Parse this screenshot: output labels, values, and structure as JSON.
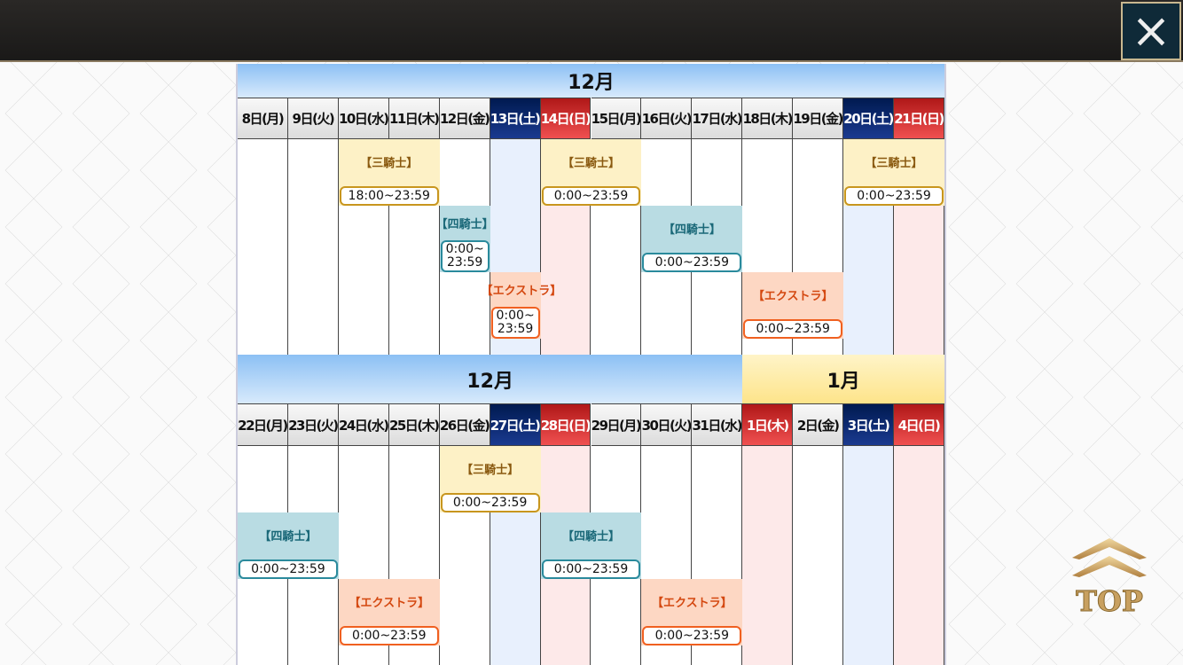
{
  "header": {
    "close_icon": "close-icon",
    "close_label": "×"
  },
  "colors": {
    "saturday": "#1a3a90",
    "sunday_holiday": "#d03030",
    "sankishi": "#c8961e",
    "yonkishi": "#2a8a9c",
    "extra": "#f06020"
  },
  "weeks": [
    {
      "months": [
        {
          "label": "12月",
          "start": 0,
          "span": 14,
          "style": "blue"
        }
      ],
      "days": [
        {
          "label": "8日(月)",
          "type": "norm"
        },
        {
          "label": "9日(火)",
          "type": "norm"
        },
        {
          "label": "10日(水)",
          "type": "norm"
        },
        {
          "label": "11日(木)",
          "type": "norm"
        },
        {
          "label": "12日(金)",
          "type": "norm"
        },
        {
          "label": "13日(土)",
          "type": "sat"
        },
        {
          "label": "14日(日)",
          "type": "sun"
        },
        {
          "label": "15日(月)",
          "type": "norm"
        },
        {
          "label": "16日(火)",
          "type": "norm"
        },
        {
          "label": "17日(水)",
          "type": "norm"
        },
        {
          "label": "18日(木)",
          "type": "norm"
        },
        {
          "label": "19日(金)",
          "type": "norm"
        },
        {
          "label": "20日(土)",
          "type": "sat"
        },
        {
          "label": "21日(日)",
          "type": "sun"
        }
      ],
      "events": [
        {
          "type": "san",
          "label": "【三騎士】",
          "time": "18:00~23:59",
          "start": 2,
          "span": 2
        },
        {
          "type": "san",
          "label": "【三騎士】",
          "time": "0:00~23:59",
          "start": 6,
          "span": 2
        },
        {
          "type": "san",
          "label": "【三騎士】",
          "time": "0:00~23:59",
          "start": 12,
          "span": 2
        },
        {
          "type": "yon",
          "label": "【四騎士】",
          "time": "0:00~ 23:59",
          "start": 4,
          "span": 1
        },
        {
          "type": "yon",
          "label": "【四騎士】",
          "time": "0:00~23:59",
          "start": 8,
          "span": 2
        },
        {
          "type": "ext",
          "label": "【エクストラ】",
          "time": "0:00~ 23:59",
          "start": 5,
          "span": 1
        },
        {
          "type": "ext",
          "label": "【エクストラ】",
          "time": "0:00~23:59",
          "start": 10,
          "span": 2
        }
      ]
    },
    {
      "months": [
        {
          "label": "12月",
          "start": 0,
          "span": 10,
          "style": "blue"
        },
        {
          "label": "1月",
          "start": 10,
          "span": 4,
          "style": "yellow"
        }
      ],
      "days": [
        {
          "label": "22日(月)",
          "type": "norm"
        },
        {
          "label": "23日(火)",
          "type": "norm"
        },
        {
          "label": "24日(水)",
          "type": "norm"
        },
        {
          "label": "25日(木)",
          "type": "norm"
        },
        {
          "label": "26日(金)",
          "type": "norm"
        },
        {
          "label": "27日(土)",
          "type": "sat"
        },
        {
          "label": "28日(日)",
          "type": "sun"
        },
        {
          "label": "29日(月)",
          "type": "norm"
        },
        {
          "label": "30日(火)",
          "type": "norm"
        },
        {
          "label": "31日(水)",
          "type": "norm"
        },
        {
          "label": "1日(木)",
          "type": "sun"
        },
        {
          "label": "2日(金)",
          "type": "norm"
        },
        {
          "label": "3日(土)",
          "type": "sat"
        },
        {
          "label": "4日(日)",
          "type": "sun"
        }
      ],
      "events": [
        {
          "type": "san",
          "label": "【三騎士】",
          "time": "0:00~23:59",
          "start": 4,
          "span": 2
        },
        {
          "type": "yon",
          "label": "【四騎士】",
          "time": "0:00~23:59",
          "start": 0,
          "span": 2
        },
        {
          "type": "yon",
          "label": "【四騎士】",
          "time": "0:00~23:59",
          "start": 6,
          "span": 2
        },
        {
          "type": "ext",
          "label": "【エクストラ】",
          "time": "0:00~23:59",
          "start": 2,
          "span": 2
        },
        {
          "type": "ext",
          "label": "【エクストラ】",
          "time": "0:00~23:59",
          "start": 8,
          "span": 2
        }
      ]
    }
  ],
  "top_button": {
    "label": "TOP",
    "icon": "double-chevron-up-icon"
  }
}
